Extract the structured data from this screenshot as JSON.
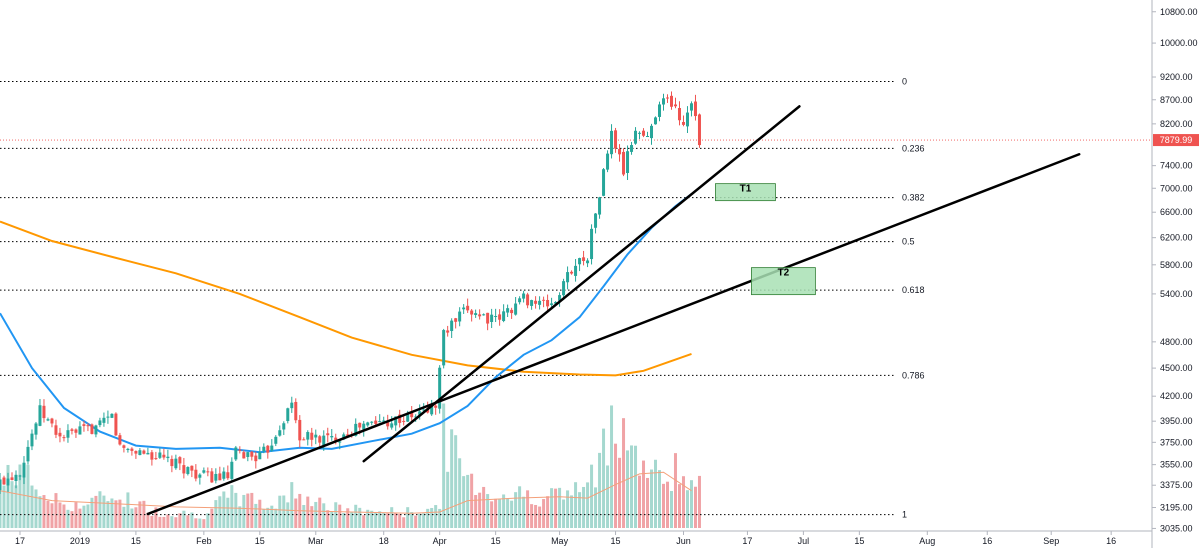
{
  "chart_data": {
    "type": "candlestick",
    "symbol_price_label": "7879.99",
    "last_price": 7879.99,
    "colors": {
      "up": "#26a69a",
      "down": "#ef5350",
      "vol_up": "#a5d8cf",
      "vol_down": "#f0a3a6",
      "ma_fast": "#2196f3",
      "ma_slow": "#ff9800",
      "ma_volume": "#f4a07a",
      "trendline": "#000000",
      "zone_fill": "#a8e0b4",
      "zone_border": "#2e7d32",
      "price_tag": "#ef5350",
      "fib_line": "#000000"
    },
    "y_axis": {
      "scale": "log",
      "range": [
        2950,
        10900
      ],
      "ticks": [
        "10800.00",
        "10000.00",
        "9200.00",
        "8700.00",
        "8200.00",
        "7400.00",
        "7000.00",
        "6600.00",
        "6200.00",
        "5800.00",
        "5400.00",
        "4800.00",
        "4500.00",
        "4200.00",
        "3950.00",
        "3750.00",
        "3550.00",
        "3375.00",
        "3195.00",
        "3035.00"
      ]
    },
    "x_axis": {
      "start_date": "2018-12-12",
      "ticks": [
        {
          "date": "2018-12-17",
          "label": "17"
        },
        {
          "date": "2019-01-01",
          "label": "2019"
        },
        {
          "date": "2019-01-15",
          "label": "15"
        },
        {
          "date": "2019-02-01",
          "label": "Feb"
        },
        {
          "date": "2019-02-15",
          "label": "15"
        },
        {
          "date": "2019-03-01",
          "label": "Mar"
        },
        {
          "date": "2019-03-18",
          "label": "18"
        },
        {
          "date": "2019-04-01",
          "label": "Apr"
        },
        {
          "date": "2019-04-15",
          "label": "15"
        },
        {
          "date": "2019-05-01",
          "label": "May"
        },
        {
          "date": "2019-05-15",
          "label": "15"
        },
        {
          "date": "2019-06-01",
          "label": "Jun"
        },
        {
          "date": "2019-06-17",
          "label": "17"
        },
        {
          "date": "2019-07-01",
          "label": "Jul"
        },
        {
          "date": "2019-07-15",
          "label": "15"
        },
        {
          "date": "2019-08-01",
          "label": "Aug"
        },
        {
          "date": "2019-08-16",
          "label": "16"
        },
        {
          "date": "2019-09-01",
          "label": "Sep"
        },
        {
          "date": "2019-09-16",
          "label": "16"
        }
      ]
    },
    "fib_levels": [
      {
        "label": "0",
        "price": 9100
      },
      {
        "label": "0.236",
        "price": 7720
      },
      {
        "label": "0.382",
        "price": 6840
      },
      {
        "label": "0.5",
        "price": 6140
      },
      {
        "label": "0.618",
        "price": 5450
      },
      {
        "label": "0.786",
        "price": 4420
      },
      {
        "label": "1",
        "price": 3140
      }
    ],
    "zones": [
      {
        "label": "T1",
        "date_start": "2019-06-09",
        "date_end": "2019-06-24",
        "price_high": 7080,
        "price_low": 6790
      },
      {
        "label": "T2",
        "date_start": "2019-06-18",
        "date_end": "2019-07-04",
        "price_high": 5760,
        "price_low": 5390
      }
    ],
    "trendlines": [
      {
        "from": {
          "date": "2019-01-18",
          "price": 3145
        },
        "to": {
          "date": "2019-09-08",
          "price": 7610
        }
      },
      {
        "from": {
          "date": "2019-03-13",
          "price": 3580
        },
        "to": {
          "date": "2019-06-30",
          "price": 8560
        }
      }
    ],
    "ma_fast": [
      [
        "2018-12-12",
        5150
      ],
      [
        "2018-12-20",
        4500
      ],
      [
        "2018-12-28",
        4080
      ],
      [
        "2019-01-06",
        3850
      ],
      [
        "2019-01-15",
        3720
      ],
      [
        "2019-01-25",
        3690
      ],
      [
        "2019-02-05",
        3700
      ],
      [
        "2019-02-15",
        3660
      ],
      [
        "2019-02-25",
        3700
      ],
      [
        "2019-03-05",
        3690
      ],
      [
        "2019-03-15",
        3760
      ],
      [
        "2019-03-25",
        3830
      ],
      [
        "2019-04-01",
        3930
      ],
      [
        "2019-04-08",
        4100
      ],
      [
        "2019-04-15",
        4400
      ],
      [
        "2019-04-22",
        4650
      ],
      [
        "2019-04-29",
        4820
      ],
      [
        "2019-05-06",
        5100
      ],
      [
        "2019-05-12",
        5500
      ],
      [
        "2019-05-18",
        5950
      ],
      [
        "2019-05-24",
        6350
      ],
      [
        "2019-05-30",
        6700
      ],
      [
        "2019-06-03",
        6900
      ]
    ],
    "ma_slow": [
      [
        "2018-12-12",
        6450
      ],
      [
        "2018-12-25",
        6150
      ],
      [
        "2019-01-10",
        5900
      ],
      [
        "2019-01-25",
        5680
      ],
      [
        "2019-02-10",
        5400
      ],
      [
        "2019-02-25",
        5100
      ],
      [
        "2019-03-10",
        4850
      ],
      [
        "2019-03-25",
        4650
      ],
      [
        "2019-04-08",
        4530
      ],
      [
        "2019-04-22",
        4460
      ],
      [
        "2019-05-06",
        4430
      ],
      [
        "2019-05-15",
        4420
      ],
      [
        "2019-05-22",
        4470
      ],
      [
        "2019-06-03",
        4660
      ]
    ],
    "ma_volume": [
      [
        "2018-12-12",
        3330
      ],
      [
        "2018-12-25",
        3250
      ],
      [
        "2019-01-10",
        3225
      ],
      [
        "2019-01-25",
        3200
      ],
      [
        "2019-02-10",
        3190
      ],
      [
        "2019-02-25",
        3170
      ],
      [
        "2019-03-10",
        3160
      ],
      [
        "2019-03-25",
        3150
      ],
      [
        "2019-04-01",
        3160
      ],
      [
        "2019-04-08",
        3250
      ],
      [
        "2019-04-20",
        3270
      ],
      [
        "2019-05-01",
        3280
      ],
      [
        "2019-05-08",
        3270
      ],
      [
        "2019-05-15",
        3380
      ],
      [
        "2019-05-21",
        3470
      ],
      [
        "2019-05-27",
        3485
      ],
      [
        "2019-06-03",
        3330
      ]
    ],
    "candle_keys": [
      {
        "date": "2018-12-12",
        "close": 3400
      },
      {
        "date": "2018-12-17",
        "close": 3500
      },
      {
        "date": "2018-12-22",
        "close": 4050
      },
      {
        "date": "2018-12-27",
        "close": 3800
      },
      {
        "date": "2019-01-01",
        "close": 3850
      },
      {
        "date": "2019-01-06",
        "close": 3900
      },
      {
        "date": "2019-01-09",
        "close": 4000
      },
      {
        "date": "2019-01-11",
        "close": 3700
      },
      {
        "date": "2019-01-18",
        "close": 3650
      },
      {
        "date": "2019-01-25",
        "close": 3550
      },
      {
        "date": "2019-02-01",
        "close": 3450
      },
      {
        "date": "2019-02-07",
        "close": 3440
      },
      {
        "date": "2019-02-09",
        "close": 3650
      },
      {
        "date": "2019-02-15",
        "close": 3620
      },
      {
        "date": "2019-02-17",
        "close": 3690
      },
      {
        "date": "2019-02-23",
        "close": 4120
      },
      {
        "date": "2019-02-25",
        "close": 3800
      },
      {
        "date": "2019-03-05",
        "close": 3780
      },
      {
        "date": "2019-03-12",
        "close": 3900
      },
      {
        "date": "2019-03-18",
        "close": 3950
      },
      {
        "date": "2019-03-25",
        "close": 3990
      },
      {
        "date": "2019-03-31",
        "close": 4100
      },
      {
        "date": "2019-04-02",
        "close": 4900
      },
      {
        "date": "2019-04-08",
        "close": 5200
      },
      {
        "date": "2019-04-15",
        "close": 5050
      },
      {
        "date": "2019-04-22",
        "close": 5350
      },
      {
        "date": "2019-04-27",
        "close": 5250
      },
      {
        "date": "2019-04-30",
        "close": 5300
      },
      {
        "date": "2019-05-04",
        "close": 5750
      },
      {
        "date": "2019-05-08",
        "close": 5950
      },
      {
        "date": "2019-05-11",
        "close": 6900
      },
      {
        "date": "2019-05-14",
        "close": 8000
      },
      {
        "date": "2019-05-17",
        "close": 7300
      },
      {
        "date": "2019-05-20",
        "close": 8100
      },
      {
        "date": "2019-05-23",
        "close": 7900
      },
      {
        "date": "2019-05-26",
        "close": 8700
      },
      {
        "date": "2019-05-29",
        "close": 8650
      },
      {
        "date": "2019-06-01",
        "close": 8200
      },
      {
        "date": "2019-06-03",
        "close": 8750
      },
      {
        "date": "2019-06-05",
        "close": 7880
      }
    ],
    "volume_keys": [
      {
        "date": "2018-12-12",
        "v": 0.35
      },
      {
        "date": "2018-12-16",
        "v": 0.55
      },
      {
        "date": "2018-12-20",
        "v": 0.4
      },
      {
        "date": "2018-12-25",
        "v": 0.25
      },
      {
        "date": "2019-01-01",
        "v": 0.2
      },
      {
        "date": "2019-01-10",
        "v": 0.3
      },
      {
        "date": "2019-01-20",
        "v": 0.15
      },
      {
        "date": "2019-02-01",
        "v": 0.12
      },
      {
        "date": "2019-02-08",
        "v": 0.3
      },
      {
        "date": "2019-02-18",
        "v": 0.2
      },
      {
        "date": "2019-02-24",
        "v": 0.35
      },
      {
        "date": "2019-03-05",
        "v": 0.18
      },
      {
        "date": "2019-03-15",
        "v": 0.15
      },
      {
        "date": "2019-03-25",
        "v": 0.14
      },
      {
        "date": "2019-04-01",
        "v": 0.2
      },
      {
        "date": "2019-04-02",
        "v": 0.85
      },
      {
        "date": "2019-04-08",
        "v": 0.45
      },
      {
        "date": "2019-04-15",
        "v": 0.3
      },
      {
        "date": "2019-04-25",
        "v": 0.3
      },
      {
        "date": "2019-05-03",
        "v": 0.3
      },
      {
        "date": "2019-05-10",
        "v": 0.45
      },
      {
        "date": "2019-05-14",
        "v": 1.0
      },
      {
        "date": "2019-05-17",
        "v": 0.95
      },
      {
        "date": "2019-05-21",
        "v": 0.55
      },
      {
        "date": "2019-05-27",
        "v": 0.45
      },
      {
        "date": "2019-05-30",
        "v": 0.55
      },
      {
        "date": "2019-06-03",
        "v": 0.35
      }
    ]
  }
}
